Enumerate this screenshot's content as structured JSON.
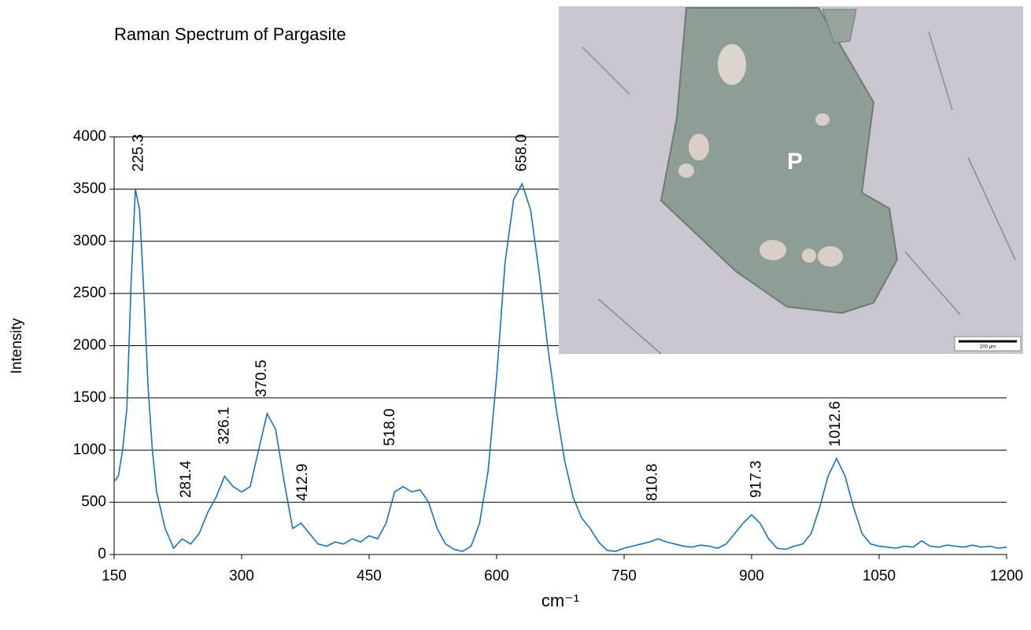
{
  "chart_data": {
    "type": "line",
    "title": "Raman Spectrum of Pargasite",
    "x_label": "cm⁻¹",
    "y_label": "Intensity",
    "color": "#1a72bb",
    "grid": true,
    "xlim": [
      150,
      1200
    ],
    "xticks": [
      150,
      300,
      450,
      600,
      750,
      900,
      1050,
      1200
    ],
    "ylim": [
      0,
      4000
    ],
    "yticks": [
      0,
      500,
      1000,
      1500,
      2000,
      2500,
      3000,
      3500,
      4000
    ],
    "x": [
      150,
      155,
      160,
      165,
      170,
      175,
      180,
      185,
      190,
      195,
      200,
      210,
      220,
      230,
      240,
      250,
      260,
      270,
      280,
      290,
      300,
      310,
      320,
      330,
      340,
      350,
      360,
      370,
      380,
      390,
      400,
      410,
      420,
      430,
      440,
      450,
      460,
      470,
      480,
      490,
      500,
      510,
      520,
      530,
      540,
      550,
      560,
      570,
      580,
      590,
      600,
      610,
      620,
      630,
      640,
      650,
      660,
      670,
      680,
      690,
      700,
      710,
      720,
      730,
      740,
      750,
      760,
      770,
      780,
      790,
      800,
      810,
      820,
      830,
      840,
      850,
      860,
      870,
      880,
      890,
      900,
      910,
      920,
      930,
      940,
      950,
      960,
      970,
      980,
      990,
      1000,
      1010,
      1020,
      1030,
      1040,
      1050,
      1060,
      1070,
      1080,
      1090,
      1100,
      1110,
      1120,
      1130,
      1140,
      1150,
      1160,
      1170,
      1180,
      1190,
      1200
    ],
    "values": [
      700,
      750,
      1000,
      1400,
      2600,
      3500,
      3300,
      2500,
      1600,
      1000,
      600,
      250,
      60,
      150,
      100,
      200,
      400,
      550,
      750,
      650,
      600,
      650,
      1000,
      1350,
      1200,
      700,
      250,
      300,
      200,
      100,
      80,
      120,
      100,
      150,
      120,
      180,
      150,
      300,
      600,
      650,
      600,
      620,
      500,
      250,
      100,
      50,
      30,
      80,
      300,
      800,
      1700,
      2800,
      3400,
      3550,
      3300,
      2700,
      2000,
      1400,
      900,
      550,
      350,
      250,
      120,
      40,
      30,
      60,
      80,
      100,
      120,
      150,
      120,
      100,
      80,
      70,
      90,
      80,
      60,
      100,
      200,
      300,
      380,
      300,
      150,
      60,
      50,
      80,
      100,
      200,
      450,
      750,
      920,
      750,
      450,
      200,
      100,
      80,
      70,
      60,
      80,
      70,
      130,
      80,
      70,
      90,
      80,
      70,
      90,
      70,
      80,
      60,
      70
    ],
    "annotations": [
      {
        "text": "225.3",
        "x": 179,
        "y": 3668
      },
      {
        "text": "281.4",
        "x": 235,
        "y": 542
      },
      {
        "text": "326.1",
        "x": 280,
        "y": 1055
      },
      {
        "text": "370.5",
        "x": 324,
        "y": 1507
      },
      {
        "text": "412.9",
        "x": 372,
        "y": 512
      },
      {
        "text": "518.0",
        "x": 475,
        "y": 1040
      },
      {
        "text": "658.0",
        "x": 630,
        "y": 3668
      },
      {
        "text": "810.8",
        "x": 784,
        "y": 512
      },
      {
        "text": "917.3",
        "x": 906,
        "y": 542
      },
      {
        "text": "1012.6",
        "x": 999,
        "y": 1032
      }
    ]
  },
  "inset": {
    "label": "P",
    "scale_bar": "200 µm"
  }
}
